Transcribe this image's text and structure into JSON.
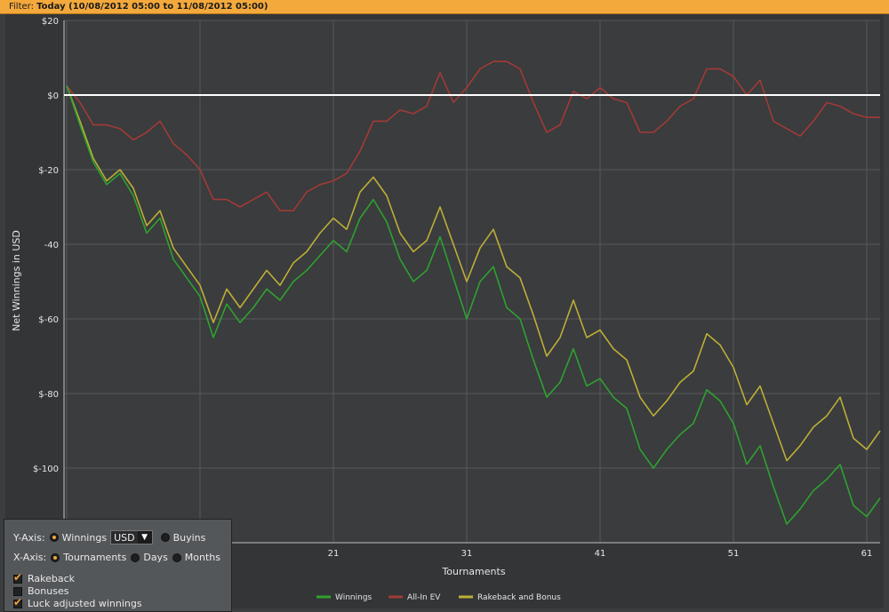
{
  "filter": {
    "label": "Filter:",
    "value": "Today (10/08/2012 05:00 to 11/08/2012 05:00)"
  },
  "chart_data": {
    "type": "line",
    "xlabel": "Tournaments",
    "ylabel": "Net Winnings in USD",
    "xlim": [
      1,
      62
    ],
    "ylim": [
      -120,
      20
    ],
    "x_ticks": [
      21,
      31,
      41,
      51,
      61
    ],
    "y_ticks": [
      {
        "value": 20,
        "label": "$20"
      },
      {
        "value": 0,
        "label": "$0"
      },
      {
        "value": -20,
        "label": "$-20"
      },
      {
        "value": -40,
        "label": "-40"
      },
      {
        "value": -60,
        "label": "$-60"
      },
      {
        "value": -80,
        "label": "$-80"
      },
      {
        "value": -100,
        "label": "$-100"
      }
    ],
    "zero_line": true,
    "grid": true,
    "legend_position": "bottom",
    "series": [
      {
        "name": "Winnings",
        "color": "#2fa12f",
        "values": [
          2.5,
          -8,
          -18,
          -24,
          -21,
          -27,
          -37,
          -33,
          -44,
          -49,
          -54,
          -65,
          -56,
          -61,
          -57,
          -52,
          -55,
          -50,
          -47,
          -43,
          -39,
          -42,
          -33,
          -28,
          -34,
          -44,
          -50,
          -47,
          -38,
          -49,
          -60,
          -50,
          -46,
          -57,
          -60,
          -71,
          -81,
          -77,
          -68,
          -78,
          -76,
          -81,
          -84,
          -95,
          -100,
          -95,
          -91,
          -88,
          -79,
          -82,
          -88,
          -99,
          -94,
          -105,
          -115,
          -111,
          -106,
          -103,
          -99,
          -110,
          -113,
          -108
        ]
      },
      {
        "name": "All-In EV",
        "color": "#a23a35",
        "values": [
          2.5,
          -2,
          -8,
          -8,
          -9,
          -12,
          -10,
          -7,
          -13,
          -16,
          -20,
          -28,
          -28,
          -30,
          -28,
          -26,
          -31,
          -31,
          -26,
          -24,
          -23,
          -21,
          -15,
          -7,
          -7,
          -4,
          -5,
          -3,
          6,
          -2,
          2,
          7,
          9,
          9,
          7,
          -2,
          -10,
          -8,
          1,
          -1,
          2,
          -1,
          -2,
          -10,
          -10,
          -7,
          -3,
          -1,
          7,
          7,
          5,
          0,
          4,
          -7,
          -9,
          -11,
          -7,
          -2,
          -3,
          -5,
          -6,
          -6
        ]
      },
      {
        "name": "Rakeback and Bonus",
        "color": "#bdae36",
        "values": [
          2.5,
          -7,
          -17,
          -23,
          -20,
          -25,
          -35,
          -31,
          -41,
          -46,
          -51,
          -61,
          -52,
          -57,
          -52,
          -47,
          -51,
          -45,
          -42,
          -37,
          -33,
          -36,
          -26,
          -22,
          -27,
          -37,
          -42,
          -39,
          -30,
          -40,
          -50,
          -41,
          -36,
          -46,
          -49,
          -59,
          -70,
          -65,
          -55,
          -65,
          -63,
          -68,
          -71,
          -81,
          -86,
          -82,
          -77,
          -74,
          -64,
          -67,
          -73,
          -83,
          -78,
          -88,
          -98,
          -94,
          -89,
          -86,
          -81,
          -92,
          -95,
          -90
        ]
      }
    ]
  },
  "options": {
    "y_axis": {
      "label": "Y-Axis:",
      "winnings": "Winnings",
      "currency": "USD",
      "buyins": "Buyins"
    },
    "x_axis": {
      "label": "X-Axis:",
      "tournaments": "Tournaments",
      "days": "Days",
      "months": "Months"
    },
    "rakeback": "Rakeback",
    "bonuses": "Bonuses",
    "luck_adjusted": "Luck adjusted winnings"
  }
}
